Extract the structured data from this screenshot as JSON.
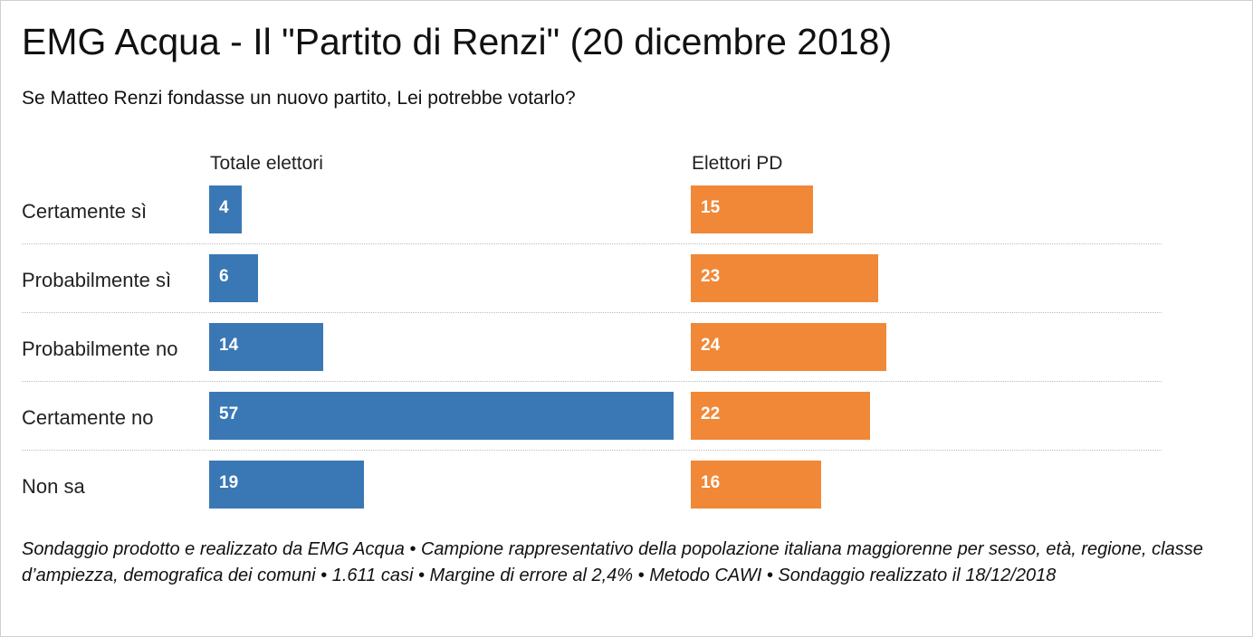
{
  "chart_data": {
    "type": "bar",
    "orientation": "horizontal",
    "title": "EMG Acqua - Il \"Partito di Renzi\" (20 dicembre 2018)",
    "subtitle": "Se Matteo Renzi fondasse un nuovo partito, Lei potrebbe votarlo?",
    "categories": [
      "Certamente sì",
      "Probabilmente sì",
      "Probabilmente no",
      "Certamente no",
      "Non sa"
    ],
    "series": [
      {
        "name": "Totale elettori",
        "values": [
          4,
          6,
          14,
          57,
          19
        ],
        "color": "#3a78b5"
      },
      {
        "name": "Elettori PD",
        "values": [
          15,
          23,
          24,
          22,
          16
        ],
        "color": "#f08838"
      }
    ],
    "grid": false,
    "legend": "panel headers above each column",
    "footer": "Sondaggio prodotto e realizzato da EMG Acqua • Campione rappresentativo della popolazione italiana maggiorenne per sesso, età, regione, classe d’ampiezza, demografica dei comuni • 1.611 casi • Margine di errore al 2,4% • Metodo CAWI • Sondaggio realizzato il 18/12/2018"
  }
}
